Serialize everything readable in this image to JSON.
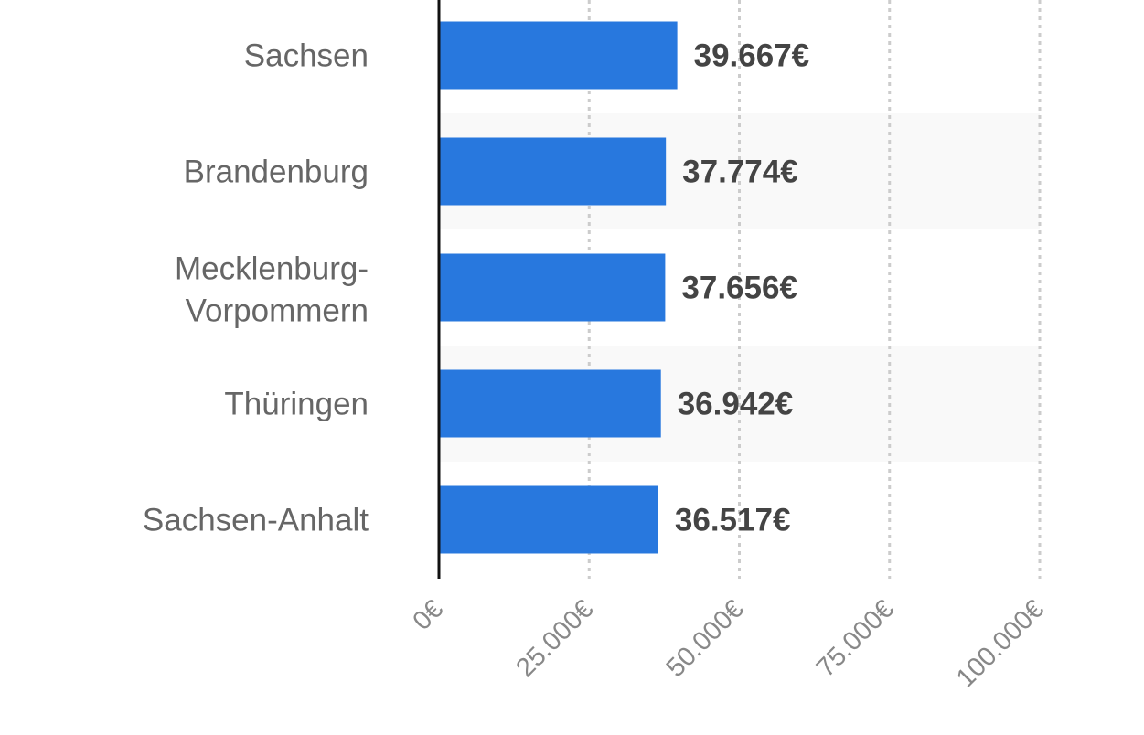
{
  "chart_data": {
    "type": "bar",
    "orientation": "horizontal",
    "categories": [
      "Sachsen",
      "Brandenburg",
      "Mecklenburg-Vorpommern",
      "Thüringen",
      "Sachsen-Anhalt"
    ],
    "values": [
      39667,
      37774,
      37656,
      36942,
      36517
    ],
    "value_labels": [
      "39.667€",
      "37.774€",
      "37.656€",
      "36.942€",
      "36.517€"
    ],
    "title": "",
    "xlabel": "",
    "ylabel": "",
    "xlim": [
      0,
      100000
    ],
    "x_ticks": [
      0,
      25000,
      50000,
      75000,
      100000
    ],
    "x_tick_labels": [
      "0€",
      "25.000€",
      "50.000€",
      "75.000€",
      "100.000€"
    ],
    "grid": "vertical dotted",
    "alternating_row_shading": true,
    "colors": {
      "bar": "#2878de",
      "row_shade": "#f9f9f9",
      "grid": "#cccccc",
      "axis": "#111111"
    }
  }
}
